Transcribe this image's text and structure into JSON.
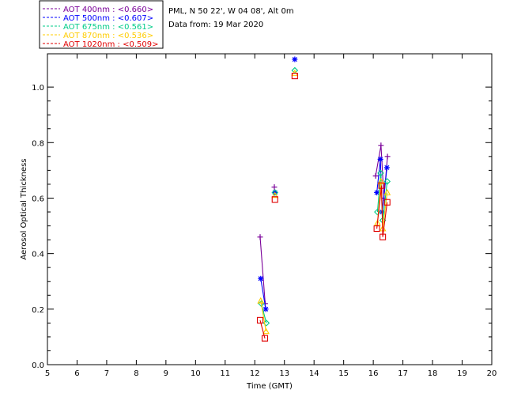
{
  "chart_data": {
    "type": "scatter",
    "title": "",
    "xlabel": "Time (GMT)",
    "ylabel": "Aerosol Optical Thickness",
    "xlim": [
      5,
      20
    ],
    "ylim": [
      0,
      1.12
    ],
    "x_ticks": [
      5,
      6,
      7,
      8,
      9,
      10,
      11,
      12,
      13,
      14,
      15,
      16,
      17,
      18,
      19,
      20
    ],
    "y_ticks": [
      0.0,
      0.2,
      0.4,
      0.6,
      0.8,
      1.0
    ],
    "y_tick_labels": [
      "0.0",
      "0.2",
      "0.4",
      "0.6",
      "0.8",
      "1.0"
    ],
    "grid": false,
    "legend_position": "top-left",
    "info_lines": [
      "PML, N 50 22', W 04 08', Alt 0m",
      "Data from: 19 Mar 2020"
    ],
    "series": [
      {
        "name": "AOT 400nm : <0.660>",
        "color": "#7a0099",
        "marker": "plus",
        "segments": [
          [
            [
              12.18,
              0.46
            ],
            [
              12.35,
              0.22
            ]
          ],
          [
            [
              12.66,
              0.64
            ]
          ],
          [
            [
              16.08,
              0.68
            ],
            [
              16.26,
              0.79
            ],
            [
              16.36,
              0.6
            ],
            [
              16.48,
              0.75
            ]
          ]
        ]
      },
      {
        "name": "AOT 500nm : <0.607>",
        "color": "#0000ff",
        "marker": "asterisk",
        "segments": [
          [
            [
              12.2,
              0.31
            ],
            [
              12.37,
              0.2
            ]
          ],
          [
            [
              12.68,
              0.62
            ]
          ],
          [
            [
              13.35,
              1.1
            ]
          ],
          [
            [
              16.12,
              0.62
            ],
            [
              16.24,
              0.74
            ],
            [
              16.3,
              0.55
            ],
            [
              16.46,
              0.71
            ]
          ]
        ]
      },
      {
        "name": "AOT 675nm : <0.561>",
        "color": "#00cc88",
        "marker": "diamond",
        "segments": [
          [
            [
              12.22,
              0.22
            ],
            [
              12.39,
              0.15
            ]
          ],
          [
            [
              12.68,
              0.62
            ]
          ],
          [
            [
              13.35,
              1.06
            ]
          ],
          [
            [
              16.14,
              0.55
            ],
            [
              16.25,
              0.69
            ],
            [
              16.32,
              0.52
            ],
            [
              16.47,
              0.66
            ]
          ]
        ]
      },
      {
        "name": "AOT 870nm : <0.536>",
        "color": "#ffcc00",
        "marker": "triangle",
        "segments": [
          [
            [
              12.2,
              0.23
            ],
            [
              12.38,
              0.12
            ]
          ],
          [
            [
              12.68,
              0.61
            ]
          ],
          [
            [
              13.35,
              1.05
            ]
          ],
          [
            [
              16.14,
              0.51
            ],
            [
              16.26,
              0.66
            ],
            [
              16.32,
              0.49
            ],
            [
              16.47,
              0.62
            ]
          ]
        ]
      },
      {
        "name": "AOT 1020nm : <0.509>",
        "color": "#e00000",
        "marker": "square",
        "segments": [
          [
            [
              12.18,
              0.16
            ],
            [
              12.34,
              0.095
            ]
          ],
          [
            [
              12.68,
              0.595
            ]
          ],
          [
            [
              13.35,
              1.04
            ]
          ],
          [
            [
              16.12,
              0.49
            ],
            [
              16.28,
              0.645
            ],
            [
              16.32,
              0.46
            ],
            [
              16.47,
              0.585
            ]
          ]
        ]
      }
    ]
  }
}
